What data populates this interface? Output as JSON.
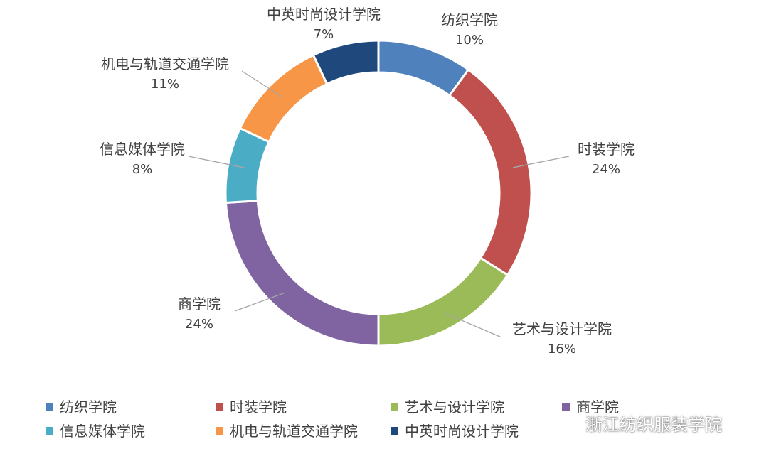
{
  "chart_data": {
    "type": "pie",
    "style": "donut",
    "title": "",
    "categories": [
      "纺织学院",
      "时装学院",
      "艺术与设计学院",
      "商学院",
      "信息媒体学院",
      "机电与轨道交通学院",
      "中英时尚设计学院"
    ],
    "values": [
      10,
      24,
      16,
      24,
      8,
      11,
      7
    ],
    "value_labels": [
      "10%",
      "24%",
      "16%",
      "24%",
      "8%",
      "11%",
      "7%"
    ],
    "colors": [
      "#4F81BD",
      "#C0504D",
      "#9BBB59",
      "#8064A2",
      "#4BACC6",
      "#F79646",
      "#1F497D"
    ],
    "legend_placement": "bottom"
  },
  "watermark": {
    "text": "浙江纺织服装学院",
    "icon": "wechat-icon"
  }
}
